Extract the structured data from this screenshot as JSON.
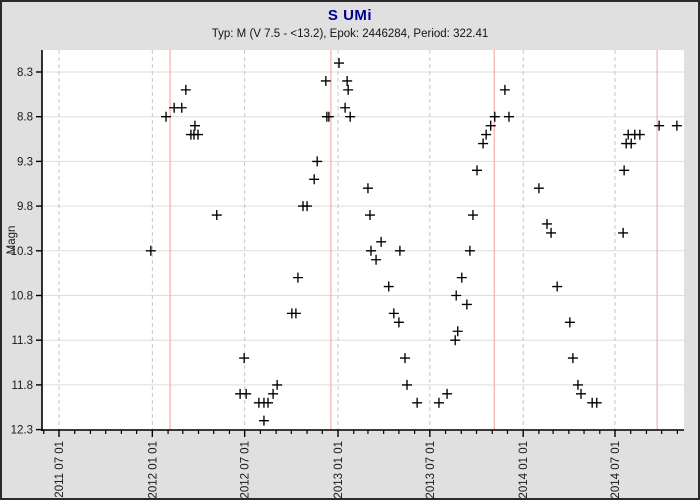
{
  "window": {
    "background": "#e0e0e0",
    "frame_color": "#2b2b2b"
  },
  "header": {
    "title": "S UMi",
    "title_color": "#000090",
    "subtitle": "Typ: M (V 7.5 - <13.2), Epok: 2446284, Period: 322.41"
  },
  "chart_data": {
    "type": "scatter",
    "title": "S UMi",
    "subtitle": "Typ: M (V 7.5 - <13.2), Epok: 2446284, Period: 322.41",
    "xlabel": "",
    "ylabel": "Magn",
    "marker": {
      "shape": "plus",
      "color": "#000000",
      "size": 10
    },
    "grid": {
      "horizontal_solid": true,
      "vertical_dashed_at_major_ticks": true
    },
    "colors": {
      "plot_background": "#ffffff",
      "axis": "#000000",
      "h_gridline": "#dedede",
      "v_gridline": "#c6c6c6",
      "maxima_line": "#f2b6b6",
      "tick_text": "#1a1a1a"
    },
    "y_axis": {
      "label": "Magn",
      "ticks": [
        8.3,
        8.8,
        9.3,
        9.8,
        10.3,
        10.8,
        11.3,
        11.8,
        12.3
      ],
      "range": [
        8.05,
        12.31
      ],
      "inverted": true
    },
    "x_axis": {
      "tick_labels": [
        "2011 07 01",
        "2012 01 01",
        "2012 07 01",
        "2013 01 01",
        "2013 07 01",
        "2014 01 01",
        "2014 07 01"
      ],
      "tick_dates": [
        "2011-07-01",
        "2012-01-01",
        "2012-07-01",
        "2013-01-01",
        "2013-07-01",
        "2014-01-01",
        "2014-07-01"
      ],
      "range": [
        "2011-05-28",
        "2014-11-15"
      ],
      "minor_tick_interval": "month"
    },
    "maxima_lines": {
      "color": "#f2b6b6",
      "dates": [
        "2012-02-05",
        "2012-12-18",
        "2013-11-05",
        "2014-09-22"
      ]
    },
    "points": [
      [
        "2011-12-29",
        10.3
      ],
      [
        "2012-01-28",
        8.8
      ],
      [
        "2012-02-13",
        8.7
      ],
      [
        "2012-02-28",
        8.7
      ],
      [
        "2012-03-07",
        8.5
      ],
      [
        "2012-03-17",
        9.0
      ],
      [
        "2012-03-23",
        9.0
      ],
      [
        "2012-03-25",
        8.9
      ],
      [
        "2012-03-31",
        9.0
      ],
      [
        "2012-05-07",
        9.9
      ],
      [
        "2012-06-22",
        11.9
      ],
      [
        "2012-06-30",
        11.5
      ],
      [
        "2012-07-04",
        11.9
      ],
      [
        "2012-07-29",
        12.0
      ],
      [
        "2012-08-08",
        12.0
      ],
      [
        "2012-08-08",
        12.2
      ],
      [
        "2012-08-16",
        12.0
      ],
      [
        "2012-08-26",
        11.9
      ],
      [
        "2012-09-03",
        11.8
      ],
      [
        "2012-10-02",
        11.0
      ],
      [
        "2012-10-10",
        11.0
      ],
      [
        "2012-10-14",
        10.6
      ],
      [
        "2012-10-24",
        9.8
      ],
      [
        "2012-11-01",
        9.8
      ],
      [
        "2012-11-15",
        9.5
      ],
      [
        "2012-11-21",
        9.3
      ],
      [
        "2012-12-08",
        8.4
      ],
      [
        "2012-12-10",
        8.8
      ],
      [
        "2012-12-14",
        8.8
      ],
      [
        "2013-01-03",
        8.2
      ],
      [
        "2013-01-15",
        8.7
      ],
      [
        "2013-01-19",
        8.4
      ],
      [
        "2013-01-21",
        8.5
      ],
      [
        "2013-01-25",
        8.8
      ],
      [
        "2013-03-01",
        9.6
      ],
      [
        "2013-03-05",
        9.9
      ],
      [
        "2013-03-07",
        10.3
      ],
      [
        "2013-03-17",
        10.4
      ],
      [
        "2013-03-27",
        10.2
      ],
      [
        "2013-04-11",
        10.7
      ],
      [
        "2013-04-21",
        11.0
      ],
      [
        "2013-05-01",
        11.1
      ],
      [
        "2013-05-03",
        10.3
      ],
      [
        "2013-05-13",
        11.5
      ],
      [
        "2013-05-17",
        11.8
      ],
      [
        "2013-06-06",
        12.0
      ],
      [
        "2013-07-19",
        12.0
      ],
      [
        "2013-08-04",
        11.9
      ],
      [
        "2013-08-20",
        11.3
      ],
      [
        "2013-08-22",
        10.8
      ],
      [
        "2013-08-25",
        11.2
      ],
      [
        "2013-09-02",
        10.6
      ],
      [
        "2013-09-12",
        10.9
      ],
      [
        "2013-09-18",
        10.3
      ],
      [
        "2013-09-24",
        9.9
      ],
      [
        "2013-10-02",
        9.4
      ],
      [
        "2013-10-14",
        9.1
      ],
      [
        "2013-10-20",
        9.0
      ],
      [
        "2013-10-29",
        8.9
      ],
      [
        "2013-11-06",
        8.8
      ],
      [
        "2013-11-26",
        8.5
      ],
      [
        "2013-12-04",
        8.8
      ],
      [
        "2014-02-01",
        9.6
      ],
      [
        "2014-02-17",
        10.0
      ],
      [
        "2014-02-25",
        10.1
      ],
      [
        "2014-03-09",
        10.7
      ],
      [
        "2014-04-03",
        11.1
      ],
      [
        "2014-04-09",
        11.5
      ],
      [
        "2014-04-19",
        11.8
      ],
      [
        "2014-04-25",
        11.9
      ],
      [
        "2014-05-17",
        12.0
      ],
      [
        "2014-05-26",
        12.0
      ],
      [
        "2014-07-17",
        10.1
      ],
      [
        "2014-07-19",
        9.4
      ],
      [
        "2014-07-23",
        9.1
      ],
      [
        "2014-07-27",
        9.0
      ],
      [
        "2014-08-02",
        9.1
      ],
      [
        "2014-08-09",
        9.0
      ],
      [
        "2014-08-19",
        9.0
      ],
      [
        "2014-09-26",
        8.9
      ],
      [
        "2014-10-31",
        8.9
      ]
    ]
  }
}
